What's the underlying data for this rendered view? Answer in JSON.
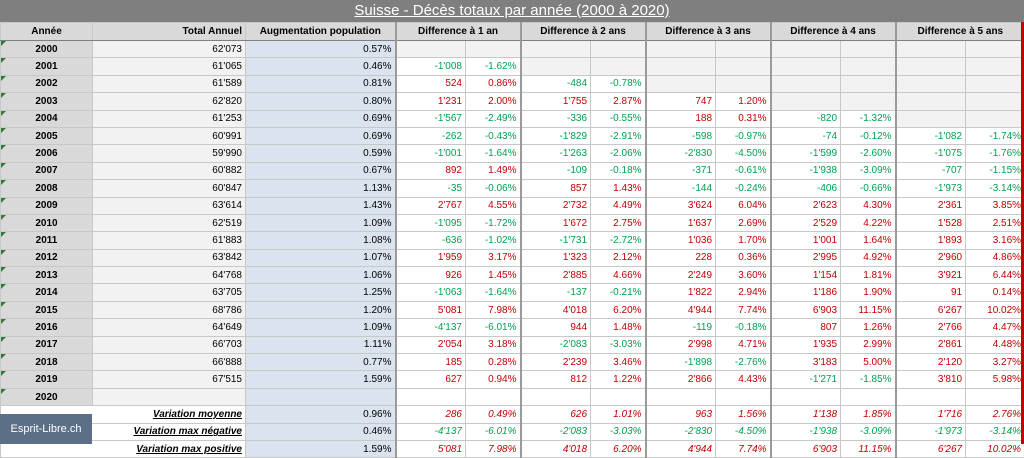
{
  "title": "Suisse - Décès totaux par année (2000 à 2020)",
  "brand": "Esprit-Libre.ch",
  "headers": {
    "year": "Année",
    "total": "Total Annuel",
    "pop": "Augmentation population",
    "d1": "Difference à 1 an",
    "d2": "Difference à 2 ans",
    "d3": "Difference à 3 ans",
    "d4": "Difference à 4 ans",
    "d5": "Difference à 5 ans"
  },
  "rows": [
    {
      "year": "2000",
      "total": "62'073",
      "pop": "0.57%",
      "d": [
        [
          "",
          ""
        ],
        [
          "",
          ""
        ],
        [
          "",
          ""
        ],
        [
          "",
          ""
        ],
        [
          "",
          ""
        ]
      ]
    },
    {
      "year": "2001",
      "total": "61'065",
      "pop": "0.46%",
      "d": [
        [
          "-1'008",
          "-1.62%"
        ],
        [
          "",
          ""
        ],
        [
          "",
          ""
        ],
        [
          "",
          ""
        ],
        [
          "",
          ""
        ]
      ]
    },
    {
      "year": "2002",
      "total": "61'589",
      "pop": "0.81%",
      "d": [
        [
          "524",
          "0.86%"
        ],
        [
          "-484",
          "-0.78%"
        ],
        [
          "",
          ""
        ],
        [
          "",
          ""
        ],
        [
          "",
          ""
        ]
      ]
    },
    {
      "year": "2003",
      "total": "62'820",
      "pop": "0.80%",
      "d": [
        [
          "1'231",
          "2.00%"
        ],
        [
          "1'755",
          "2.87%"
        ],
        [
          "747",
          "1.20%"
        ],
        [
          "",
          ""
        ],
        [
          "",
          ""
        ]
      ]
    },
    {
      "year": "2004",
      "total": "61'253",
      "pop": "0.69%",
      "d": [
        [
          "-1'567",
          "-2.49%"
        ],
        [
          "-336",
          "-0.55%"
        ],
        [
          "188",
          "0.31%"
        ],
        [
          "-820",
          "-1.32%"
        ],
        [
          "",
          ""
        ]
      ]
    },
    {
      "year": "2005",
      "total": "60'991",
      "pop": "0.69%",
      "d": [
        [
          "-262",
          "-0.43%"
        ],
        [
          "-1'829",
          "-2.91%"
        ],
        [
          "-598",
          "-0.97%"
        ],
        [
          "-74",
          "-0.12%"
        ],
        [
          "-1'082",
          "-1.74%"
        ]
      ]
    },
    {
      "year": "2006",
      "total": "59'990",
      "pop": "0.59%",
      "d": [
        [
          "-1'001",
          "-1.64%"
        ],
        [
          "-1'263",
          "-2.06%"
        ],
        [
          "-2'830",
          "-4.50%"
        ],
        [
          "-1'599",
          "-2.60%"
        ],
        [
          "-1'075",
          "-1.76%"
        ]
      ]
    },
    {
      "year": "2007",
      "total": "60'882",
      "pop": "0.67%",
      "d": [
        [
          "892",
          "1.49%"
        ],
        [
          "-109",
          "-0.18%"
        ],
        [
          "-371",
          "-0.61%"
        ],
        [
          "-1'938",
          "-3.09%"
        ],
        [
          "-707",
          "-1.15%"
        ]
      ]
    },
    {
      "year": "2008",
      "total": "60'847",
      "pop": "1.13%",
      "d": [
        [
          "-35",
          "-0.06%"
        ],
        [
          "857",
          "1.43%"
        ],
        [
          "-144",
          "-0.24%"
        ],
        [
          "-406",
          "-0.66%"
        ],
        [
          "-1'973",
          "-3.14%"
        ]
      ]
    },
    {
      "year": "2009",
      "total": "63'614",
      "pop": "1.43%",
      "d": [
        [
          "2'767",
          "4.55%"
        ],
        [
          "2'732",
          "4.49%"
        ],
        [
          "3'624",
          "6.04%"
        ],
        [
          "2'623",
          "4.30%"
        ],
        [
          "2'361",
          "3.85%"
        ]
      ]
    },
    {
      "year": "2010",
      "total": "62'519",
      "pop": "1.09%",
      "d": [
        [
          "-1'095",
          "-1.72%"
        ],
        [
          "1'672",
          "2.75%"
        ],
        [
          "1'637",
          "2.69%"
        ],
        [
          "2'529",
          "4.22%"
        ],
        [
          "1'528",
          "2.51%"
        ]
      ]
    },
    {
      "year": "2011",
      "total": "61'883",
      "pop": "1.08%",
      "d": [
        [
          "-636",
          "-1.02%"
        ],
        [
          "-1'731",
          "-2.72%"
        ],
        [
          "1'036",
          "1.70%"
        ],
        [
          "1'001",
          "1.64%"
        ],
        [
          "1'893",
          "3.16%"
        ]
      ]
    },
    {
      "year": "2012",
      "total": "63'842",
      "pop": "1.07%",
      "d": [
        [
          "1'959",
          "3.17%"
        ],
        [
          "1'323",
          "2.12%"
        ],
        [
          "228",
          "0.36%"
        ],
        [
          "2'995",
          "4.92%"
        ],
        [
          "2'960",
          "4.86%"
        ]
      ]
    },
    {
      "year": "2013",
      "total": "64'768",
      "pop": "1.06%",
      "d": [
        [
          "926",
          "1.45%"
        ],
        [
          "2'885",
          "4.66%"
        ],
        [
          "2'249",
          "3.60%"
        ],
        [
          "1'154",
          "1.81%"
        ],
        [
          "3'921",
          "6.44%"
        ]
      ]
    },
    {
      "year": "2014",
      "total": "63'705",
      "pop": "1.25%",
      "d": [
        [
          "-1'063",
          "-1.64%"
        ],
        [
          "-137",
          "-0.21%"
        ],
        [
          "1'822",
          "2.94%"
        ],
        [
          "1'186",
          "1.90%"
        ],
        [
          "91",
          "0.14%"
        ]
      ]
    },
    {
      "year": "2015",
      "total": "68'786",
      "pop": "1.20%",
      "d": [
        [
          "5'081",
          "7.98%"
        ],
        [
          "4'018",
          "6.20%"
        ],
        [
          "4'944",
          "7.74%"
        ],
        [
          "6'903",
          "11.15%"
        ],
        [
          "6'267",
          "10.02%"
        ]
      ]
    },
    {
      "year": "2016",
      "total": "64'649",
      "pop": "1.09%",
      "d": [
        [
          "-4'137",
          "-6.01%"
        ],
        [
          "944",
          "1.48%"
        ],
        [
          "-119",
          "-0.18%"
        ],
        [
          "807",
          "1.26%"
        ],
        [
          "2'766",
          "4.47%"
        ]
      ]
    },
    {
      "year": "2017",
      "total": "66'703",
      "pop": "1.11%",
      "d": [
        [
          "2'054",
          "3.18%"
        ],
        [
          "-2'083",
          "-3.03%"
        ],
        [
          "2'998",
          "4.71%"
        ],
        [
          "1'935",
          "2.99%"
        ],
        [
          "2'861",
          "4.48%"
        ]
      ]
    },
    {
      "year": "2018",
      "total": "66'888",
      "pop": "0.77%",
      "d": [
        [
          "185",
          "0.28%"
        ],
        [
          "2'239",
          "3.46%"
        ],
        [
          "-1'898",
          "-2.76%"
        ],
        [
          "3'183",
          "5.00%"
        ],
        [
          "2'120",
          "3.27%"
        ]
      ]
    },
    {
      "year": "2019",
      "total": "67'515",
      "pop": "1.59%",
      "d": [
        [
          "627",
          "0.94%"
        ],
        [
          "812",
          "1.22%"
        ],
        [
          "2'866",
          "4.43%"
        ],
        [
          "-1'271",
          "-1.85%"
        ],
        [
          "3'810",
          "5.98%"
        ]
      ]
    },
    {
      "year": "2020",
      "total": "",
      "pop": "",
      "d": [
        [
          "",
          ""
        ],
        [
          "",
          ""
        ],
        [
          "",
          ""
        ],
        [
          "",
          ""
        ],
        [
          "",
          ""
        ]
      ]
    }
  ],
  "summary": [
    {
      "label": "Variation moyenne",
      "pop": "0.96%",
      "d": [
        [
          "286",
          "0.49%"
        ],
        [
          "626",
          "1.01%"
        ],
        [
          "963",
          "1.56%"
        ],
        [
          "1'138",
          "1.85%"
        ],
        [
          "1'716",
          "2.76%"
        ]
      ]
    },
    {
      "label": "Variation max négative",
      "pop": "0.46%",
      "d": [
        [
          "-4'137",
          "-6.01%"
        ],
        [
          "-2'083",
          "-3.03%"
        ],
        [
          "-2'830",
          "-4.50%"
        ],
        [
          "-1'938",
          "-3.09%"
        ],
        [
          "-1'973",
          "-3.14%"
        ]
      ]
    },
    {
      "label": "Variation max positive",
      "pop": "1.59%",
      "d": [
        [
          "5'081",
          "7.98%"
        ],
        [
          "4'018",
          "6.20%"
        ],
        [
          "4'944",
          "7.74%"
        ],
        [
          "6'903",
          "11.15%"
        ],
        [
          "6'267",
          "10.02%"
        ]
      ]
    }
  ]
}
